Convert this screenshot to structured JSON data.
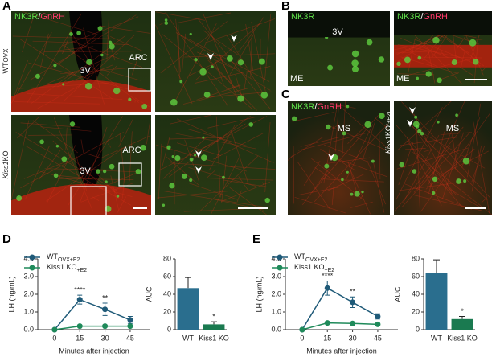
{
  "panel_labels": [
    "A",
    "B",
    "C",
    "D",
    "E"
  ],
  "panel_a": {
    "stain": [
      "NK3R",
      "/",
      "GnRH"
    ],
    "row_labels": [
      {
        "main": "WT",
        "sub": "OVX"
      },
      {
        "main": "Kiss1",
        "main2": "KO"
      }
    ],
    "top": {
      "ventricle": "3V",
      "region": "ARC"
    },
    "bottom": {
      "ventricle": "3V",
      "region": "ARC"
    }
  },
  "panel_b": {
    "left": {
      "stain": [
        "NK3R"
      ],
      "ventricle": "3V",
      "region": "ME"
    },
    "right": {
      "stain": [
        "NK3R",
        "/",
        "GnRH"
      ],
      "region": "ME"
    }
  },
  "panel_c": {
    "stain": [
      "NK3R",
      "/",
      "GnRH"
    ],
    "left": {
      "region": "MS"
    },
    "right": {
      "region": "MS"
    },
    "row_labels": [
      {
        "main": "WT",
        "sub": "OVX+E2"
      },
      {
        "main": "Kiss1",
        "main2": "KO",
        "sub": "(+E2)"
      }
    ]
  },
  "chart_data": [
    {
      "type": "line",
      "x": [
        0,
        15,
        30,
        45
      ],
      "xlim": [
        -10,
        57
      ],
      "xticks": [
        0,
        15,
        30,
        45
      ],
      "ylim": [
        0,
        4
      ],
      "yticks": [
        {
          "value": 0,
          "label": "0.0"
        },
        {
          "value": 1,
          "label": "1.0"
        },
        {
          "value": 2,
          "label": "2.0"
        },
        {
          "value": 3,
          "label": "3.0"
        },
        {
          "value": 4,
          "label": "4.0"
        }
      ],
      "xlabel": "Minutes after injection",
      "ylabel": "LH (ng/mL)",
      "series": [
        {
          "name": "WT",
          "subscript": "OVX+E2",
          "color": "#1f5a78",
          "values": [
            0,
            1.7,
            1.15,
            0.55
          ],
          "errors": [
            0,
            0.25,
            0.35,
            0.2
          ]
        },
        {
          "name": "Kiss1 KO",
          "subscript": "+E2",
          "color": "#1f8a5a",
          "values": [
            0,
            0.2,
            0.2,
            0.2
          ],
          "errors": [
            0,
            0.05,
            0.05,
            0.05
          ]
        }
      ],
      "annotations": [
        {
          "x": 15,
          "text": "****"
        },
        {
          "x": 30,
          "text": "**"
        }
      ]
    },
    {
      "type": "bar",
      "categories": [
        "WT",
        "Kiss1 KO"
      ],
      "values": [
        47,
        6
      ],
      "errors": [
        12,
        3
      ],
      "colors": [
        "#2a6e8e",
        "#1a7a50"
      ],
      "ylim": [
        0,
        80
      ],
      "yticks": [
        0,
        20,
        40,
        60,
        80
      ],
      "ylabel": "AUC",
      "annotations": [
        {
          "category": 1,
          "text": "*"
        }
      ]
    },
    {
      "type": "line",
      "x": [
        0,
        15,
        30,
        45
      ],
      "xlim": [
        -10,
        57
      ],
      "xticks": [
        0,
        15,
        30,
        45
      ],
      "ylim": [
        0,
        4
      ],
      "yticks": [
        {
          "value": 0,
          "label": "0.0"
        },
        {
          "value": 1,
          "label": "1.0"
        },
        {
          "value": 2,
          "label": "2.0"
        },
        {
          "value": 3,
          "label": "3.0"
        },
        {
          "value": 4,
          "label": "4.0"
        }
      ],
      "xlabel": "Minutes after injection",
      "ylabel": "LH (ng/mL)",
      "series": [
        {
          "name": "WT",
          "subscript": "OVX+E2",
          "color": "#1f5a78",
          "values": [
            0,
            2.35,
            1.55,
            0.75
          ],
          "errors": [
            0,
            0.4,
            0.3,
            0.15
          ]
        },
        {
          "name": "Kiss1 KO",
          "subscript": "+E2",
          "color": "#1f8a5a",
          "values": [
            0,
            0.38,
            0.35,
            0.3
          ],
          "errors": [
            0,
            0.05,
            0.05,
            0.05
          ]
        }
      ],
      "annotations": [
        {
          "x": 15,
          "text": "****"
        },
        {
          "x": 30,
          "text": "**"
        }
      ]
    },
    {
      "type": "bar",
      "categories": [
        "WT",
        "Kiss1 KO"
      ],
      "values": [
        64,
        12
      ],
      "errors": [
        15,
        3
      ],
      "colors": [
        "#2a6e8e",
        "#1a7a50"
      ],
      "ylim": [
        0,
        80
      ],
      "yticks": [
        0,
        20,
        40,
        60,
        80
      ],
      "ylabel": "AUC",
      "annotations": [
        {
          "category": 1,
          "text": "*"
        }
      ]
    }
  ]
}
